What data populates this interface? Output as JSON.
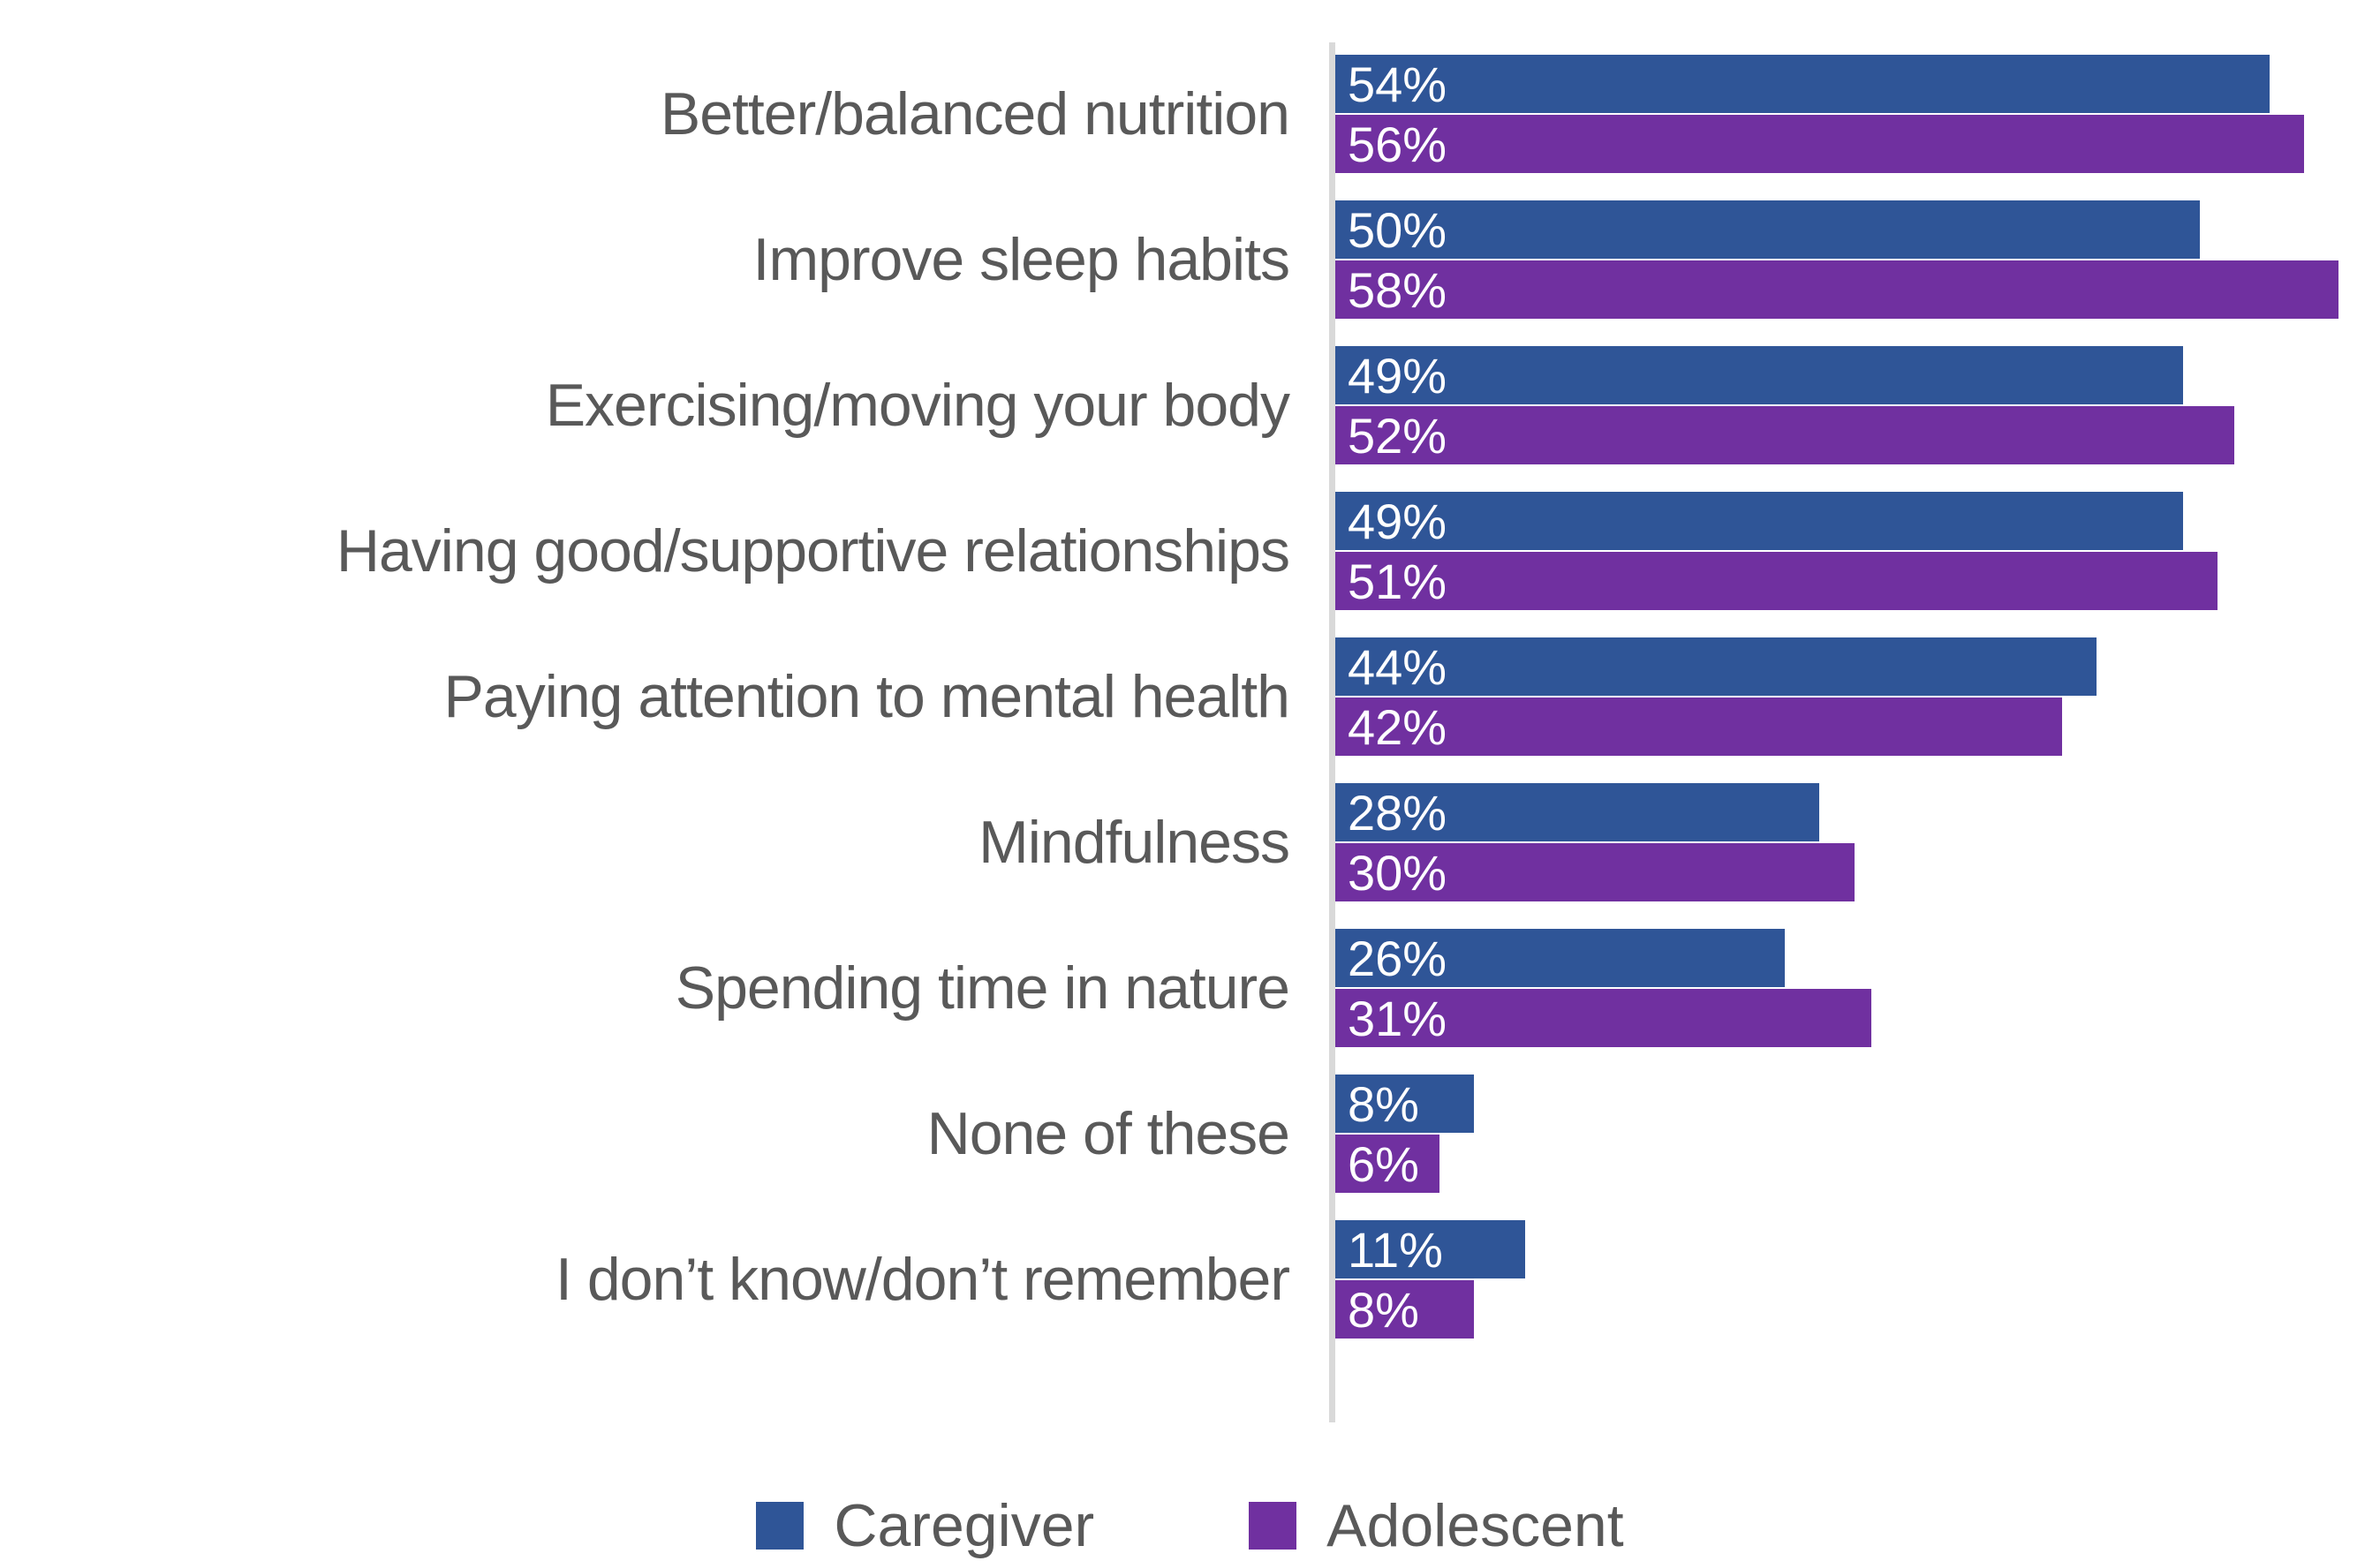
{
  "chart_data": {
    "type": "bar",
    "orientation": "horizontal",
    "title": "",
    "xlabel": "",
    "ylabel": "",
    "value_suffix": "%",
    "xlim": [
      0,
      60.4
    ],
    "grid": false,
    "legend_position": "bottom",
    "axis_line_color": "#d9d9d9",
    "category_label_color": "#595959",
    "value_label_color": "#ffffff",
    "categories": [
      "Better/balanced nutrition",
      "Improve sleep habits",
      "Exercising/moving your body",
      "Having good/supportive relationships",
      "Paying attention to mental health",
      "Mindfulness",
      "Spending time in nature",
      "None of these",
      "I don’t know/don’t remember"
    ],
    "series": [
      {
        "name": "Caregiver",
        "color": "#2F5597",
        "values": [
          54,
          50,
          49,
          49,
          44,
          28,
          26,
          8,
          11
        ]
      },
      {
        "name": "Adolescent",
        "color": "#7030A0",
        "values": [
          56,
          58,
          52,
          51,
          42,
          30,
          31,
          6,
          8
        ]
      }
    ]
  }
}
